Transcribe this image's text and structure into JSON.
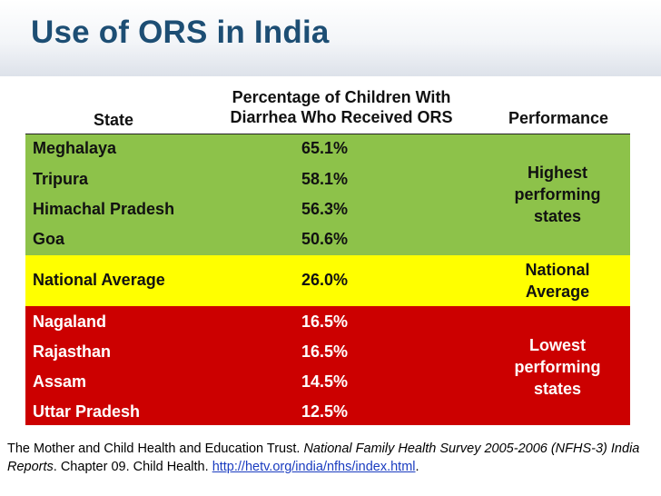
{
  "title": "Use of ORS in India",
  "table": {
    "headers": {
      "state": "State",
      "percentage_line1": "Percentage of Children With",
      "percentage_line2": "Diarrhea Who Received ORS",
      "performance": "Performance"
    },
    "groups": [
      {
        "color": "#8dc24a",
        "performance_lines": [
          "Highest",
          "performing",
          "states"
        ],
        "rows": [
          {
            "state": "Meghalaya",
            "value": "65.1%"
          },
          {
            "state": "Tripura",
            "value": "58.1%"
          },
          {
            "state": "Himachal Pradesh",
            "value": "56.3%"
          },
          {
            "state": "Goa",
            "value": "50.6%"
          }
        ]
      },
      {
        "color": "#ffff00",
        "performance_lines": [
          "National",
          "Average"
        ],
        "rows": [
          {
            "state": "National Average",
            "value": "26.0%"
          }
        ]
      },
      {
        "color": "#cc0000",
        "performance_lines": [
          "Lowest",
          "performing",
          "states"
        ],
        "rows": [
          {
            "state": "Nagaland",
            "value": "16.5%"
          },
          {
            "state": "Rajasthan",
            "value": "16.5%"
          },
          {
            "state": "Assam",
            "value": "14.5%"
          },
          {
            "state": "Uttar Pradesh",
            "value": "12.5%"
          }
        ]
      }
    ]
  },
  "source": {
    "text1": "The Mother and Child Health and Education Trust. ",
    "italic": "National Family Health Survey 2005-2006 (NFHS-3) India Reports",
    "text2": ". Chapter 09. Child Health. ",
    "link": "http://hetv.org/india/nfhs/index.html",
    "text3": "."
  }
}
